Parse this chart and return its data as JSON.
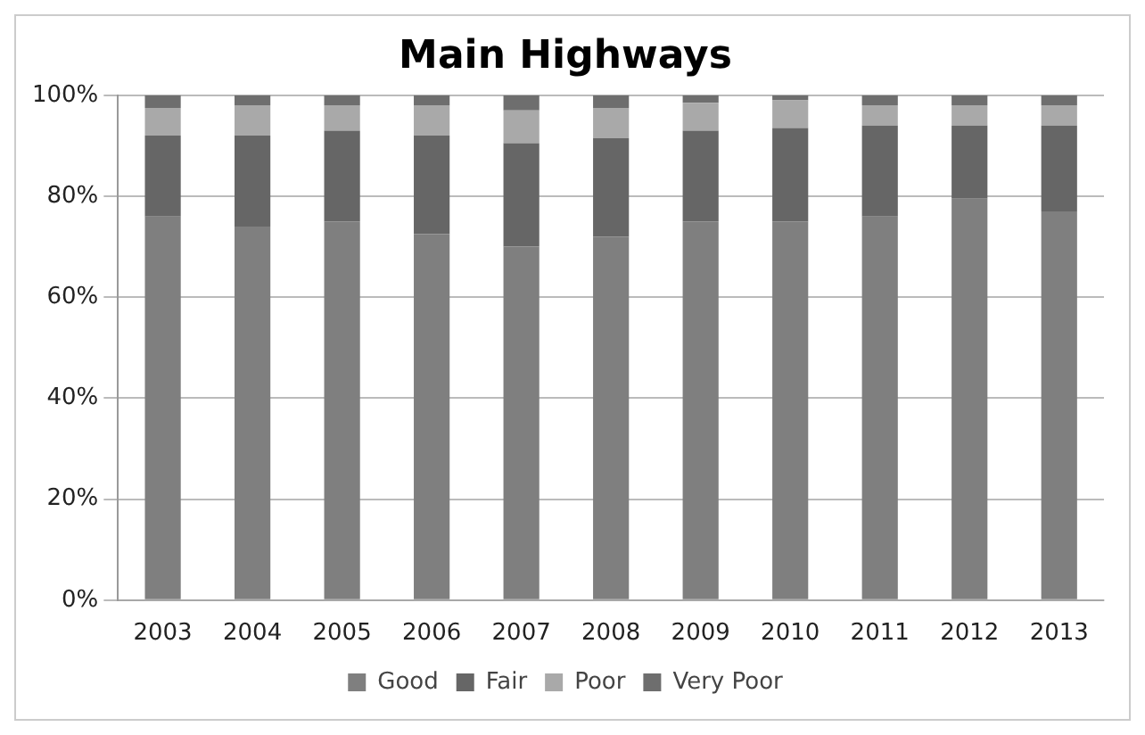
{
  "chart_data": {
    "type": "bar",
    "title": "Main Highways",
    "stacked": true,
    "categories": [
      "2003",
      "2004",
      "2005",
      "2006",
      "2007",
      "2008",
      "2009",
      "2010",
      "2011",
      "2012",
      "2013"
    ],
    "series": [
      {
        "name": "Good",
        "color": "#7f7f7f",
        "values": [
          76,
          74,
          75,
          72.5,
          70,
          72,
          75,
          75,
          76,
          79.5,
          77
        ]
      },
      {
        "name": "Fair",
        "color": "#666666",
        "values": [
          16,
          18,
          18,
          19.5,
          20.5,
          19.5,
          18,
          18.5,
          18,
          14.5,
          17
        ]
      },
      {
        "name": "Poor",
        "color": "#a9a9a9",
        "values": [
          5.5,
          6,
          5,
          6,
          6.5,
          6,
          5.5,
          5.5,
          4,
          4,
          4
        ]
      },
      {
        "name": "Very Poor",
        "color": "#6e6e6e",
        "values": [
          2.5,
          2,
          2,
          2,
          3,
          2.5,
          1.5,
          1,
          2,
          2,
          2
        ]
      }
    ],
    "ylim": [
      0,
      100
    ],
    "yticks": [
      {
        "value": 0,
        "label": "0%"
      },
      {
        "value": 20,
        "label": "20%"
      },
      {
        "value": 40,
        "label": "40%"
      },
      {
        "value": 60,
        "label": "60%"
      },
      {
        "value": 80,
        "label": "80%"
      },
      {
        "value": 100,
        "label": "100%"
      }
    ],
    "grid": "y",
    "legend": "bottom"
  }
}
